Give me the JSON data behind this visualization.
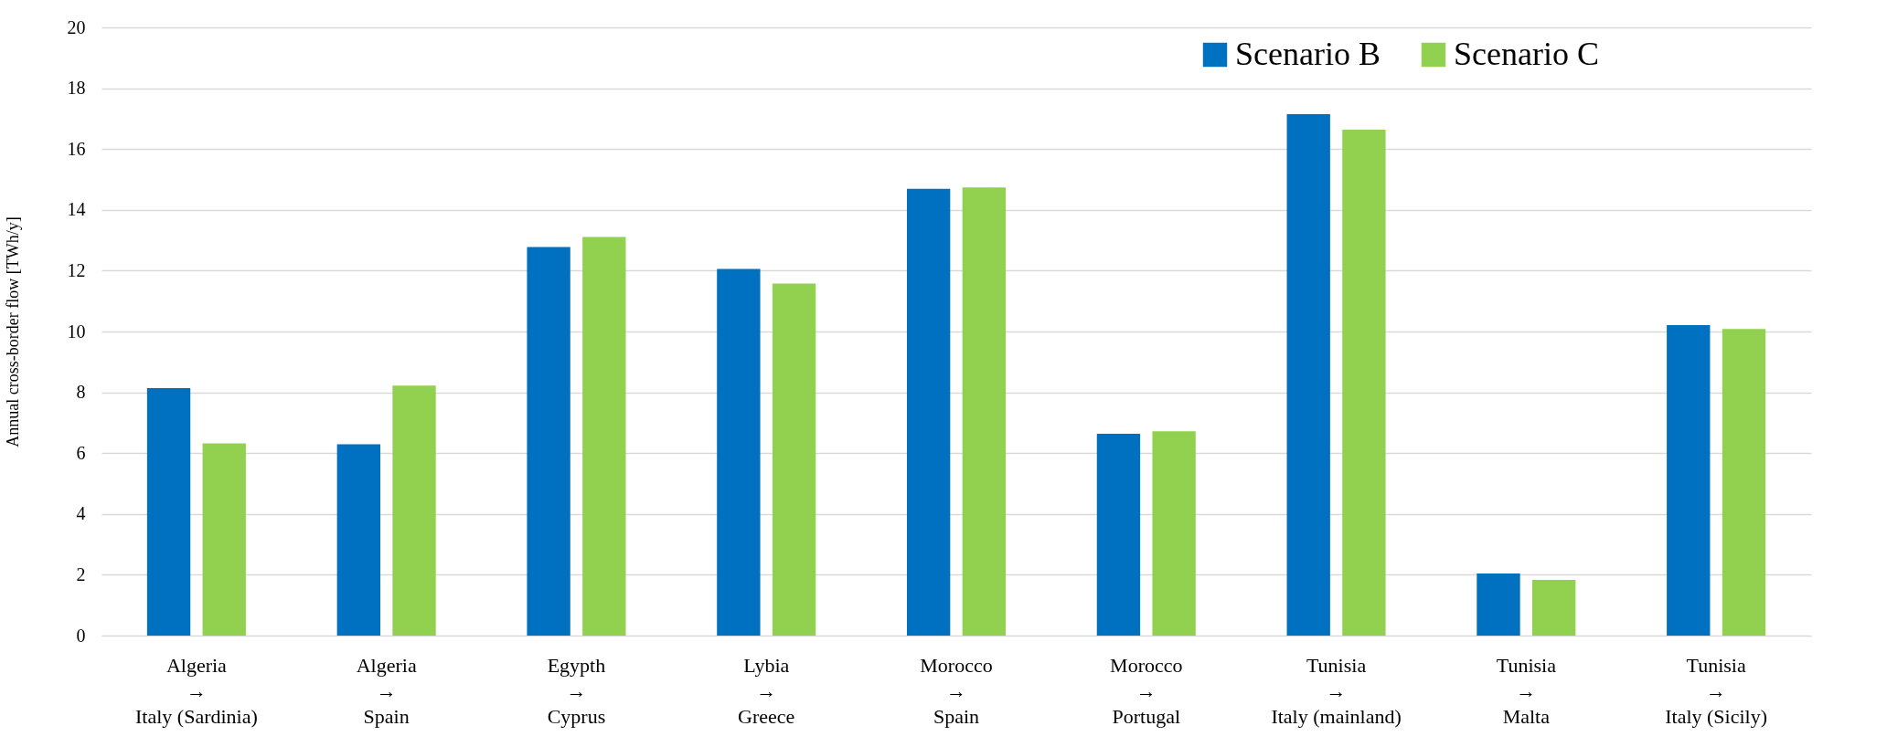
{
  "chart_data": {
    "type": "bar",
    "ylabel": "Annual cross-border flow [TWh/y]",
    "categories": [
      "Algeria\n→\nItaly (Sardinia)",
      "Algeria\n→\nSpain",
      "Egypth\n→\nCyprus",
      "Lybia\n→\nGreece",
      "Morocco\n→\nSpain",
      "Morocco\n→\nPortugal",
      "Tunisia\n→\nItaly (mainland)",
      "Tunisia\n→\nMalta",
      "Tunisia\n→\nItaly (Sicily)"
    ],
    "series": [
      {
        "name": "Scenario B",
        "color": "#0070c0",
        "values": [
          8.14,
          6.29,
          12.78,
          12.06,
          14.69,
          6.64,
          17.15,
          2.04,
          10.21
        ]
      },
      {
        "name": "Scenario C",
        "color": "#92d050",
        "values": [
          6.32,
          8.22,
          13.11,
          11.58,
          14.74,
          6.72,
          16.64,
          1.83,
          10.08
        ]
      }
    ],
    "ylim": [
      0,
      20
    ],
    "yticks": [
      0,
      2,
      4,
      6,
      8,
      10,
      12,
      14,
      16,
      18,
      20
    ],
    "grid": "y",
    "legend": "top right"
  }
}
